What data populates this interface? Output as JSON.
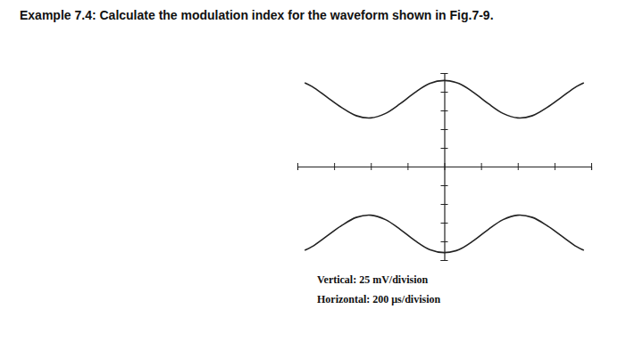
{
  "chart_data": {
    "type": "line",
    "title": "Example 7.4: Calculate the modulation index for the waveform shown in Fig.7-9.",
    "annotations": [
      "Vertical: 25 mV/division",
      "Horizontal: 200 μs/division"
    ],
    "x": [
      -760,
      -720,
      -640,
      -560,
      -480,
      -400,
      -320,
      -240,
      -160,
      -80,
      0,
      80,
      160,
      240,
      320,
      400,
      480,
      560,
      640,
      720,
      760
    ],
    "series": [
      {
        "color": "#222222",
        "values": [
          112,
          107,
          93,
          79,
          68,
          65,
          71,
          84,
          99,
          111,
          115,
          111,
          99,
          84,
          71,
          65,
          68,
          79,
          93,
          107,
          112
        ]
      },
      {
        "color": "#222222",
        "values": [
          -112,
          -107,
          -93,
          -79,
          -68,
          -65,
          -71,
          -84,
          -99,
          -111,
          -115,
          -111,
          -99,
          -84,
          -71,
          -65,
          -68,
          -79,
          -93,
          -107,
          -112
        ]
      }
    ],
    "xlim": [
      -800,
      800
    ],
    "xticks": [
      -800,
      -600,
      -400,
      -200,
      0,
      200,
      400,
      600,
      800
    ],
    "ylim": [
      -125,
      125
    ],
    "yticks": [
      -125,
      -100,
      -75,
      -50,
      -25,
      0,
      25,
      50,
      75,
      100,
      125
    ],
    "tick_labels": false,
    "grid": false
  }
}
